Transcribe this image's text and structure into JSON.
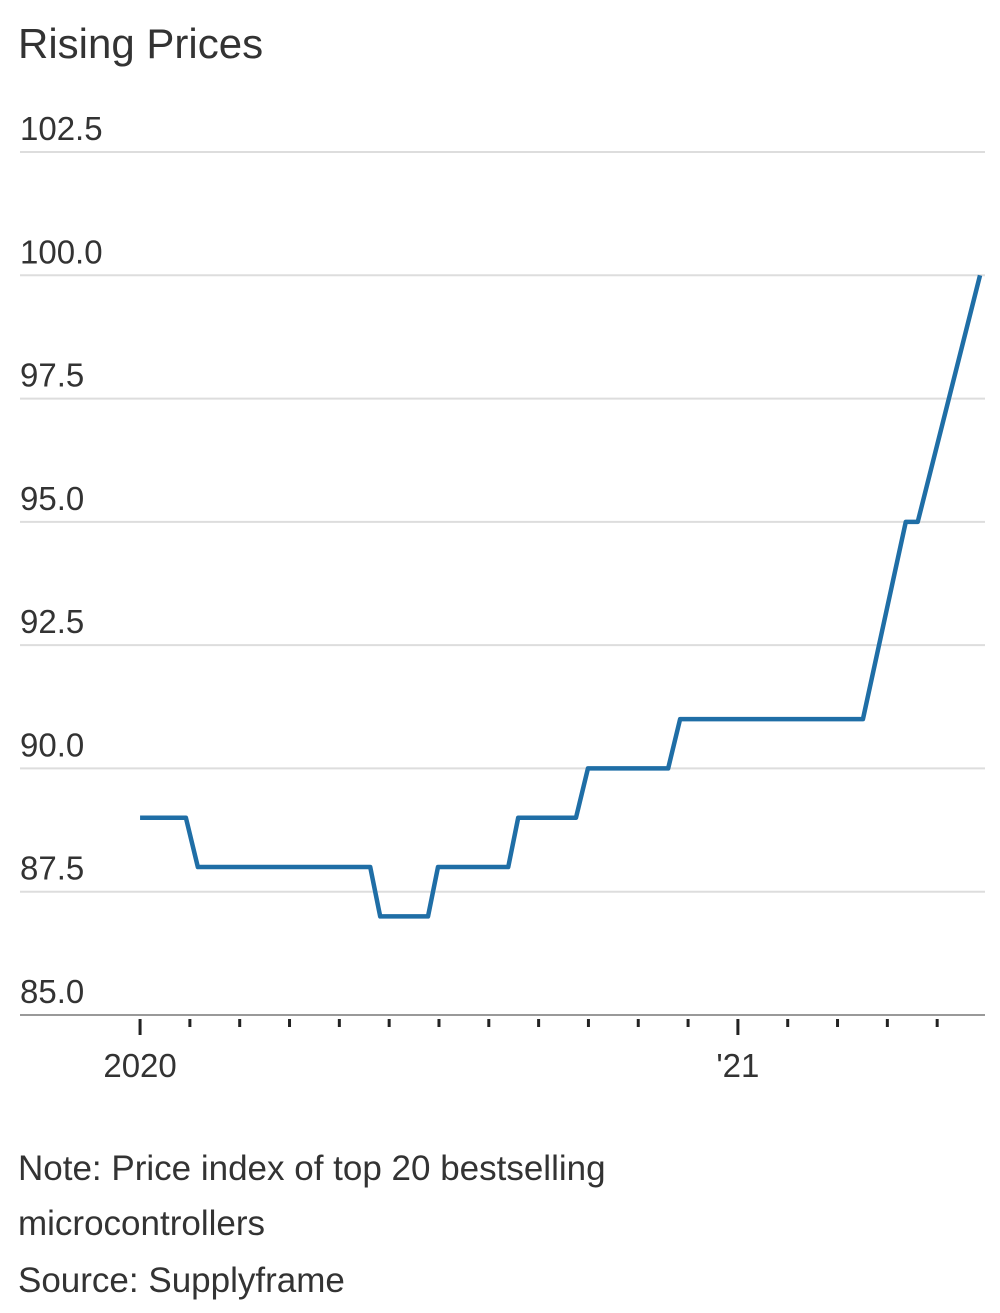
{
  "chart_data": {
    "type": "line",
    "title": "Rising Prices",
    "x": [
      0,
      0.92,
      1.16,
      4.62,
      4.82,
      5.78,
      5.98,
      7.39,
      7.59,
      8.75,
      8.99,
      10.6,
      10.84,
      14.51,
      15.37,
      15.61,
      16.86
    ],
    "values": [
      89,
      89,
      88,
      88,
      87,
      87,
      88,
      88,
      89,
      89,
      90,
      90,
      91,
      91,
      95,
      95,
      100
    ],
    "color": "#1f6ea6",
    "xlim": [
      -2.41,
      16.96
    ],
    "xticks": [
      {
        "value": 0,
        "label": "2020"
      },
      {
        "value": 1,
        "label": null
      },
      {
        "value": 2,
        "label": null
      },
      {
        "value": 3,
        "label": null
      },
      {
        "value": 4,
        "label": null
      },
      {
        "value": 5,
        "label": null
      },
      {
        "value": 6,
        "label": null
      },
      {
        "value": 7,
        "label": null
      },
      {
        "value": 8,
        "label": null
      },
      {
        "value": 9,
        "label": null
      },
      {
        "value": 10,
        "label": null
      },
      {
        "value": 11,
        "label": null
      },
      {
        "value": 12,
        "label": "'21"
      },
      {
        "value": 13,
        "label": null
      },
      {
        "value": 14,
        "label": null
      },
      {
        "value": 15,
        "label": null
      },
      {
        "value": 16,
        "label": null
      }
    ],
    "ylim": [
      85,
      102.5
    ],
    "yticks": [
      {
        "value": 85,
        "label": "85.0"
      },
      87.5,
      {
        "value": 90,
        "label": "90.0"
      },
      92.5,
      {
        "value": 95,
        "label": "95.0"
      },
      97.5,
      {
        "value": 100,
        "label": "100.0"
      },
      102.5
    ],
    "grid": true,
    "note": "Note: Price index of top 20 bestselling microcontrollers",
    "source": "Source: Supplyframe"
  }
}
